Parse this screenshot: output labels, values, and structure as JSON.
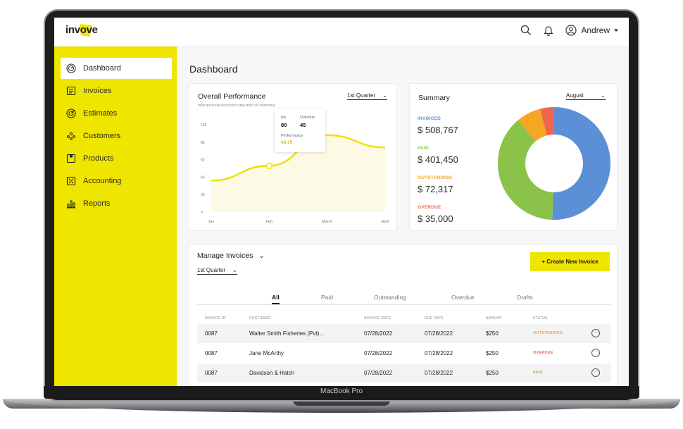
{
  "device": {
    "label": "MacBook Pro"
  },
  "app": {
    "logo_text": "invove",
    "user_name": "Andrew"
  },
  "icons": {
    "search": "search-icon",
    "bell": "bell-icon",
    "user": "user-icon",
    "caret": "caret-down-icon"
  },
  "colors": {
    "brand_yellow": "#eee500",
    "invoiced": "#5b8fd6",
    "paid": "#8bc34a",
    "outstanding": "#f5a623",
    "overdue": "#f0654f",
    "chart_line": "#f0e000"
  },
  "sidebar": {
    "items": [
      {
        "label": "Dashboard",
        "icon": "gauge-icon",
        "active": true
      },
      {
        "label": "Invoices",
        "icon": "invoice-icon",
        "active": false
      },
      {
        "label": "Estimates",
        "icon": "target-icon",
        "active": false
      },
      {
        "label": "Customers",
        "icon": "customers-icon",
        "active": false
      },
      {
        "label": "Products",
        "icon": "box-icon",
        "active": false
      },
      {
        "label": "Accounting",
        "icon": "percent-icon",
        "active": false
      },
      {
        "label": "Reports",
        "icon": "bar-chart-icon",
        "active": false
      }
    ]
  },
  "main": {
    "title": "Dashboard"
  },
  "performance": {
    "title": "Overall Performance",
    "subtitle": "PERCENTAGE INVOICES CREATED VS OVERDUE",
    "period": "1st Quarter",
    "tooltip": {
      "inv_label": "Inv.",
      "inv_value": "80",
      "overdue_label": "Overdue",
      "overdue_value": "45",
      "perf_label": "Performance",
      "perf_value": "43.75"
    }
  },
  "chart_data": {
    "type": "line",
    "title": "Overall Performance",
    "x": [
      "Jan",
      "Feb",
      "Mar",
      "Apr"
    ],
    "x_labels": [
      "Jan",
      "Feb",
      "March",
      "April"
    ],
    "y_ticks": [
      0,
      20,
      40,
      60,
      80,
      100
    ],
    "ylim": [
      0,
      100
    ],
    "series": [
      {
        "values": [
          36,
          53,
          88,
          74
        ]
      }
    ],
    "grid": false
  },
  "summary": {
    "title": "Summary",
    "period": "August",
    "items": [
      {
        "label": "INVOICED",
        "value": "$ 508,767"
      },
      {
        "label": "PAID",
        "value": "$ 401,450"
      },
      {
        "label": "OUTSTANDING",
        "value": "$ 72,317"
      },
      {
        "label": "OVERDUE",
        "value": "$ 35,000"
      }
    ],
    "donut": [
      {
        "name": "Invoiced",
        "value": 50
      },
      {
        "name": "Paid",
        "value": 38
      },
      {
        "name": "Outstanding",
        "value": 7
      },
      {
        "name": "Overdue",
        "value": 4
      }
    ]
  },
  "invoices": {
    "title": "Manage Invoices",
    "period": "1st Quarter",
    "create_label": "+ Create New Invoice",
    "tabs": [
      "All",
      "Paid",
      "Outstanding",
      "Overdue",
      "Drafts"
    ],
    "columns": [
      "INVOICE ID",
      "CUSTOMER",
      "INVOICE DATE",
      "DUE DATE",
      "AMOUNT",
      "STATUS"
    ],
    "rows": [
      {
        "id": "0087",
        "customer": "Walter Smith Fisheries (Pvt)...",
        "invoice_date": "07/28/2022",
        "due_date": "07/28/2022",
        "amount": "$250",
        "status": "OUTSTANDING",
        "status_color": "#f5a623"
      },
      {
        "id": "0087",
        "customer": "Jane McArthy",
        "invoice_date": "07/28/2022",
        "due_date": "07/28/2022",
        "amount": "$250",
        "status": "OVERDUE",
        "status_color": "#f0654f"
      },
      {
        "id": "0087",
        "customer": "Davidson & Hatch",
        "invoice_date": "07/28/2022",
        "due_date": "07/28/2022",
        "amount": "$250",
        "status": "PAID",
        "status_color": "#8bc34a"
      }
    ]
  }
}
